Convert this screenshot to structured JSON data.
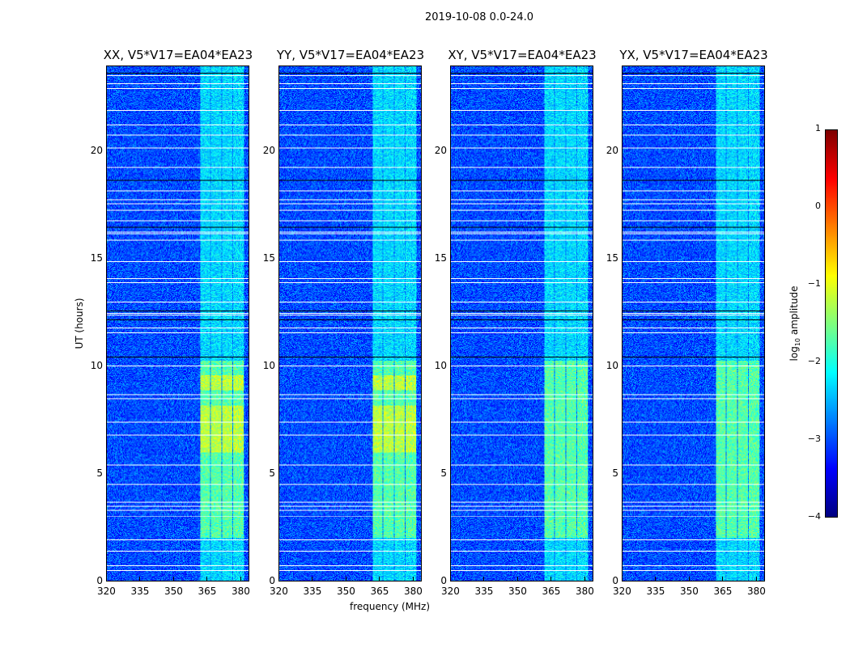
{
  "chart_data": {
    "type": "heatmap",
    "title": "2019-10-08 0.0-24.0",
    "panels": [
      {
        "title": "XX, V5*V17=EA04*EA23",
        "yellow_blobs": true
      },
      {
        "title": "YY, V5*V17=EA04*EA23",
        "yellow_blobs": true
      },
      {
        "title": "XY, V5*V17=EA04*EA23",
        "yellow_blobs": false
      },
      {
        "title": "YX, V5*V17=EA04*EA23",
        "yellow_blobs": false
      }
    ],
    "xlabel": "frequency (MHz)",
    "ylabel": "UT (hours)",
    "xlim": [
      320,
      384
    ],
    "ylim": [
      0,
      24
    ],
    "xticks": [
      320,
      335,
      350,
      365,
      380
    ],
    "yticks": [
      0,
      5,
      10,
      15,
      20
    ],
    "colorbar": {
      "label": "log10 amplitude",
      "label_main": "log",
      "label_sub": "10",
      "label_tail": " amplitude",
      "range": [
        -4,
        1
      ],
      "ticks": [
        1,
        0,
        -1,
        -2,
        -3,
        -4
      ],
      "colormap": "jet"
    },
    "background_level": -3.0,
    "rfi_band_MHz": [
      362,
      382
    ],
    "rfi_band_channels_MHz": [
      [
        362,
        366.5
      ],
      [
        367,
        371.5
      ],
      [
        372,
        376.5
      ],
      [
        377,
        381.5
      ]
    ],
    "rfi_band_level_day": -1.7,
    "rfi_band_level_night": -2.3,
    "rfi_active_hours": [
      2,
      10.3
    ],
    "flagged_hours": [
      0.5,
      0.7,
      1.4,
      1.9,
      3.0,
      3.3,
      3.5,
      3.7,
      4.5,
      5.4,
      6.8,
      7.4,
      8.5,
      8.7,
      10.05,
      11.6,
      11.8,
      12.4,
      12.5,
      13.0,
      13.9,
      14.1,
      14.9,
      15.9,
      16.2,
      16.3,
      16.8,
      17.3,
      17.6,
      17.8,
      18.2,
      19.3,
      20.2,
      20.8,
      21.3,
      21.95,
      23.0,
      23.2,
      23.6
    ],
    "black_line_hours": [
      10.45,
      12.2,
      12.6,
      16.5,
      18.7,
      23.7
    ]
  }
}
